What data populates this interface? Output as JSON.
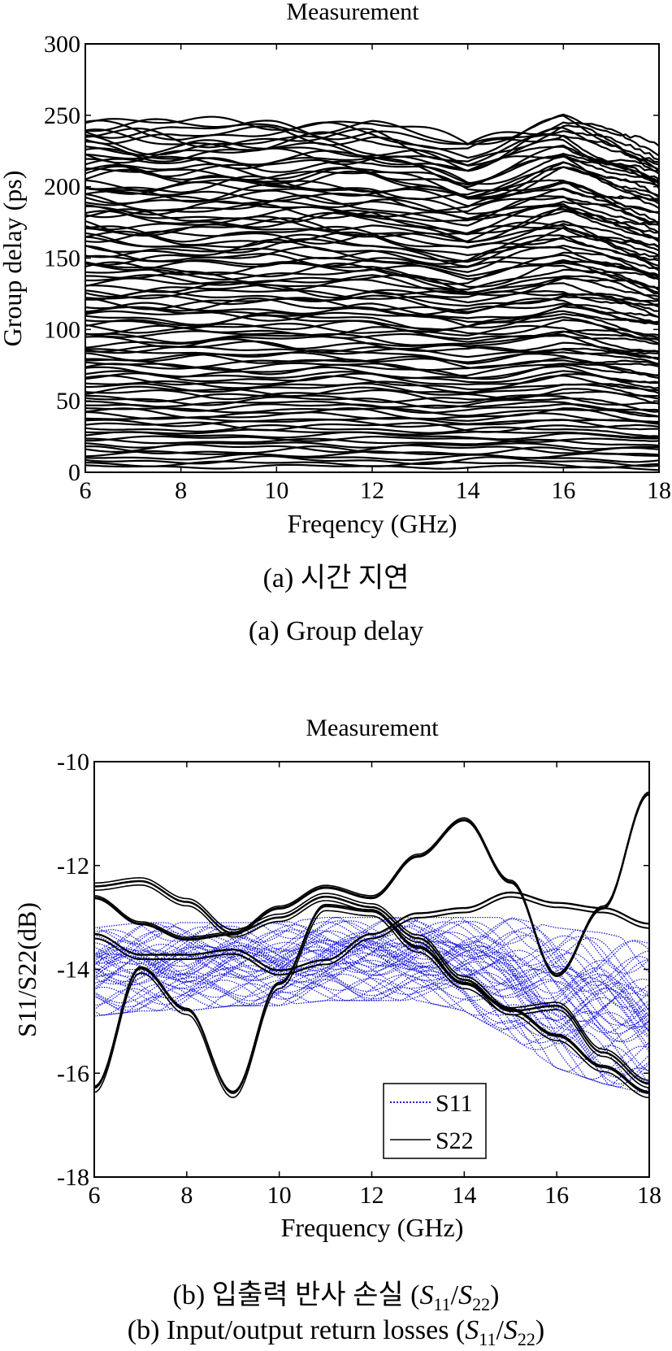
{
  "chart_data": [
    {
      "type": "line",
      "title": "Measurement",
      "xlabel": "Freqency (GHz)",
      "ylabel": "Group delay (ps)",
      "xlim": [
        6,
        18
      ],
      "ylim": [
        0,
        300
      ],
      "xticks": [
        "6",
        "8",
        "10",
        "12",
        "14",
        "16",
        "18"
      ],
      "yticks": [
        "0",
        "50",
        "100",
        "150",
        "200",
        "250",
        "300"
      ],
      "series_description": "many overlapping measured group-delay traces spanning roughly 5 to 247 ps",
      "trace_count": 110,
      "trace_envelope": {
        "x": [
          6,
          8,
          10,
          12,
          14,
          16,
          18
        ],
        "max": [
          247,
          243,
          246,
          244,
          230,
          252,
          230
        ],
        "min": [
          4,
          4,
          4,
          4,
          4,
          3,
          3
        ]
      },
      "caption_ko": "(a) 시간 지연",
      "caption_en": "(a) Group delay"
    },
    {
      "type": "line",
      "title": "Measurement",
      "xlabel": "Frequency (GHz)",
      "ylabel": "S11/S22(dB)",
      "xlim": [
        6,
        18
      ],
      "ylim": [
        -18,
        -10
      ],
      "xticks": [
        "6",
        "8",
        "10",
        "12",
        "14",
        "16",
        "18"
      ],
      "yticks": [
        "-18",
        "-16",
        "-14",
        "-12",
        "-10"
      ],
      "legend": {
        "position": "lower-right",
        "entries": [
          "S11",
          "S22"
        ]
      },
      "series": [
        {
          "name": "S11",
          "color": "#1c1cd8",
          "style": "dotted",
          "x": [
            6,
            7,
            8,
            9,
            10,
            11,
            12,
            13,
            14,
            15,
            16,
            17,
            18
          ],
          "upper": [
            -13.2,
            -13.1,
            -13.1,
            -13.1,
            -13.1,
            -13.0,
            -13.0,
            -13.0,
            -13.0,
            -13.0,
            -13.2,
            -13.3,
            -13.5
          ],
          "lower": [
            -14.9,
            -14.8,
            -14.8,
            -14.7,
            -14.7,
            -14.6,
            -14.6,
            -14.6,
            -14.8,
            -15.3,
            -15.9,
            -16.2,
            -16.4
          ]
        },
        {
          "name": "S22",
          "color": "#000000",
          "style": "solid",
          "x": [
            6,
            7,
            8,
            9,
            10,
            11,
            12,
            13,
            14,
            15,
            16,
            17,
            18
          ],
          "groups": [
            [
              -12.4,
              -12.3,
              -12.7,
              -13.3,
              -13.0,
              -12.6,
              -12.8,
              -13.4,
              -14.2,
              -14.8,
              -14.7,
              -15.6,
              -16.2
            ],
            [
              -12.6,
              -13.1,
              -13.4,
              -13.3,
              -12.8,
              -12.4,
              -12.6,
              -11.8,
              -11.1,
              -12.3,
              -14.1,
              -12.8,
              -10.6
            ],
            [
              -16.3,
              -14.0,
              -14.8,
              -16.4,
              -14.3,
              -12.8,
              -12.9,
              -13.6,
              -14.3,
              -14.8,
              -15.3,
              -15.9,
              -16.4
            ],
            [
              -13.4,
              -13.8,
              -13.8,
              -13.7,
              -14.1,
              -13.9,
              -13.4,
              -13.0,
              -12.9,
              -12.6,
              -12.8,
              -12.9,
              -13.2
            ]
          ]
        }
      ],
      "caption_ko_prefix": "(b) 입출력 반사 손실 (",
      "caption_en_prefix": "(b) Input/output return losses (",
      "caption_sym1": "S",
      "caption_sub1": "11",
      "caption_sep": "/",
      "caption_sym2": "S",
      "caption_sub2": "22",
      "caption_close": ")"
    }
  ]
}
